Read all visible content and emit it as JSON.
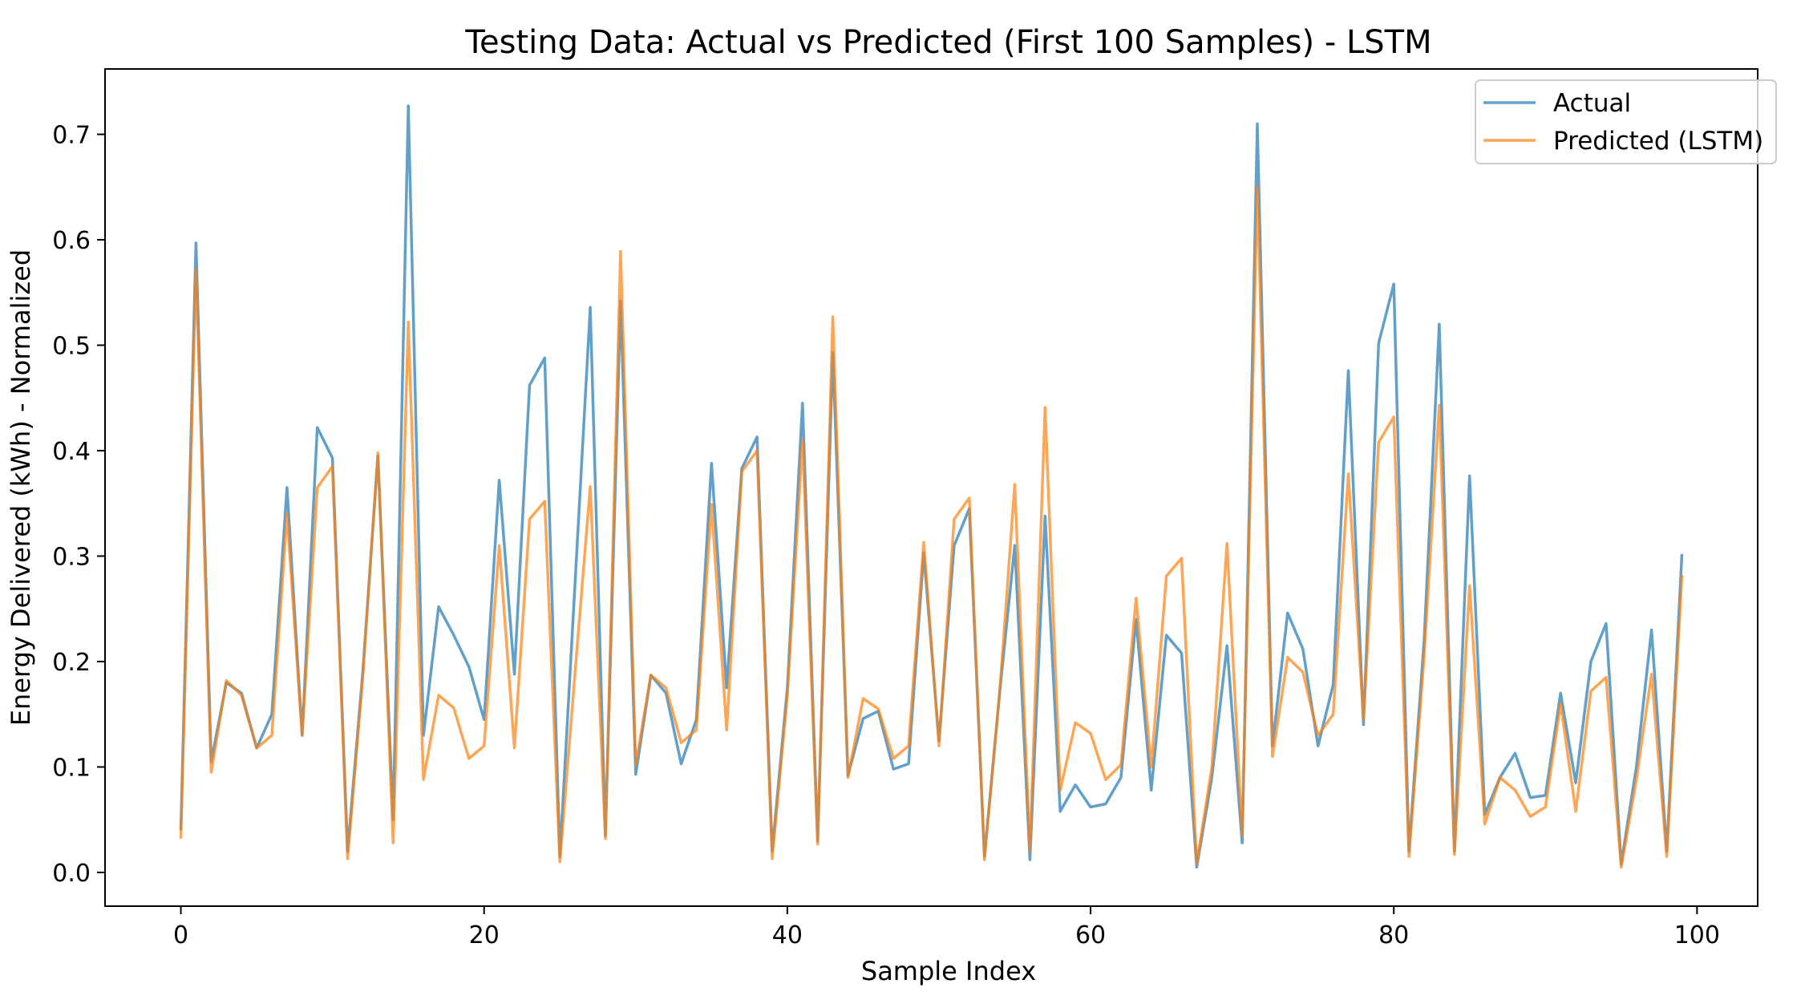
{
  "chart_data": {
    "type": "line",
    "title": "Testing Data: Actual vs Predicted (First 100 Samples) - LSTM",
    "xlabel": "Sample Index",
    "ylabel": "Energy Delivered (kWh) - Normalized",
    "xlim": [
      -5,
      104
    ],
    "ylim": [
      -0.032,
      0.762
    ],
    "xticks": [
      0,
      20,
      40,
      60,
      80,
      100
    ],
    "xtick_labels": [
      "0",
      "20",
      "40",
      "60",
      "80",
      "100"
    ],
    "yticks": [
      0.0,
      0.1,
      0.2,
      0.3,
      0.4,
      0.5,
      0.6,
      0.7
    ],
    "ytick_labels": [
      "0.0",
      "0.1",
      "0.2",
      "0.3",
      "0.4",
      "0.5",
      "0.6",
      "0.7"
    ],
    "grid": false,
    "legend_position": "top-right",
    "series": [
      {
        "name": "Actual",
        "color": "#1f77b4",
        "values": [
          0.04,
          0.597,
          0.105,
          0.18,
          0.17,
          0.118,
          0.15,
          0.365,
          0.13,
          0.422,
          0.393,
          0.02,
          0.19,
          0.395,
          0.05,
          0.727,
          0.13,
          0.252,
          0.225,
          0.195,
          0.145,
          0.372,
          0.188,
          0.462,
          0.488,
          0.015,
          0.275,
          0.536,
          0.035,
          0.542,
          0.093,
          0.187,
          0.17,
          0.103,
          0.145,
          0.388,
          0.175,
          0.383,
          0.413,
          0.02,
          0.175,
          0.445,
          0.03,
          0.493,
          0.092,
          0.146,
          0.153,
          0.098,
          0.103,
          0.303,
          0.125,
          0.31,
          0.345,
          0.015,
          0.17,
          0.31,
          0.012,
          0.338,
          0.058,
          0.083,
          0.062,
          0.065,
          0.09,
          0.24,
          0.078,
          0.225,
          0.208,
          0.005,
          0.09,
          0.215,
          0.028,
          0.71,
          0.12,
          0.246,
          0.212,
          0.12,
          0.178,
          0.476,
          0.14,
          0.502,
          0.558,
          0.02,
          0.22,
          0.52,
          0.02,
          0.376,
          0.055,
          0.09,
          0.113,
          0.071,
          0.073,
          0.17,
          0.085,
          0.2,
          0.236,
          0.008,
          0.1,
          0.23,
          0.02,
          0.302
        ]
      },
      {
        "name": "Predicted (LSTM)",
        "color": "#ff7f0e",
        "values": [
          0.032,
          0.572,
          0.095,
          0.182,
          0.168,
          0.118,
          0.13,
          0.34,
          0.13,
          0.365,
          0.385,
          0.013,
          0.185,
          0.398,
          0.028,
          0.522,
          0.088,
          0.168,
          0.156,
          0.108,
          0.12,
          0.31,
          0.118,
          0.335,
          0.352,
          0.01,
          0.19,
          0.366,
          0.032,
          0.589,
          0.102,
          0.187,
          0.175,
          0.123,
          0.135,
          0.349,
          0.135,
          0.38,
          0.4,
          0.013,
          0.168,
          0.41,
          0.027,
          0.527,
          0.09,
          0.165,
          0.155,
          0.108,
          0.12,
          0.313,
          0.12,
          0.335,
          0.355,
          0.012,
          0.17,
          0.368,
          0.02,
          0.441,
          0.078,
          0.142,
          0.132,
          0.088,
          0.102,
          0.26,
          0.1,
          0.281,
          0.298,
          0.008,
          0.1,
          0.312,
          0.035,
          0.65,
          0.11,
          0.204,
          0.19,
          0.13,
          0.15,
          0.378,
          0.145,
          0.408,
          0.432,
          0.015,
          0.205,
          0.443,
          0.017,
          0.272,
          0.046,
          0.09,
          0.078,
          0.053,
          0.062,
          0.16,
          0.058,
          0.172,
          0.185,
          0.005,
          0.088,
          0.188,
          0.015,
          0.282
        ]
      }
    ]
  }
}
